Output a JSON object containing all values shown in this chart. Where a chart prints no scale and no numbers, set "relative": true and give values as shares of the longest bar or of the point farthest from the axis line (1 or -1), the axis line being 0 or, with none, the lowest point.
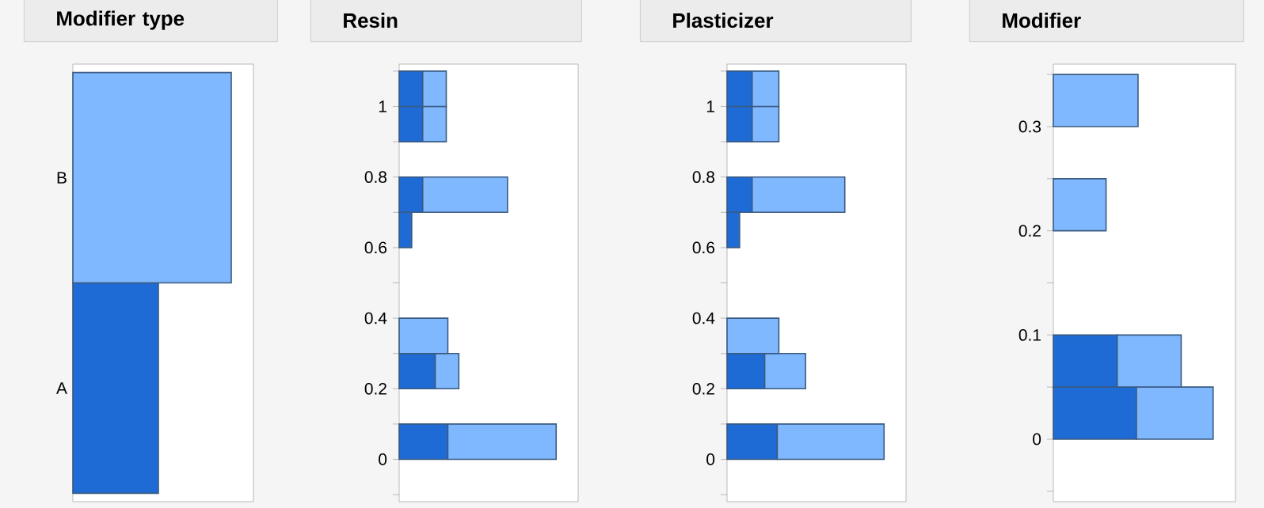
{
  "chart_data": [
    {
      "type": "bar",
      "title": "Modifier type",
      "categories": [
        "B",
        "A"
      ],
      "orientation": "horizontal",
      "relative": true,
      "series": [
        {
          "color": "#1f6bd6",
          "values": [
            null,
            0.54
          ]
        },
        {
          "color": "#80b8ff",
          "values": [
            1,
            null
          ]
        }
      ]
    },
    {
      "type": "bar",
      "title": "Resin",
      "orientation": "horizontal",
      "stacked": true,
      "relative": true,
      "x": [
        0.05,
        0.15,
        0.25,
        0.35,
        0.45,
        0.55,
        0.65,
        0.75,
        0.85,
        0.95,
        1.05
      ],
      "ylim": [
        -0.12,
        1.12
      ],
      "yticks": [
        {
          "value": -0.1,
          "label": null
        },
        0,
        {
          "value": 0.1,
          "label": null
        },
        0.2,
        {
          "value": 0.3,
          "label": null
        },
        0.4,
        {
          "value": 0.5,
          "label": null
        },
        0.6,
        {
          "value": 0.7,
          "label": null
        },
        0.8,
        {
          "value": 0.9,
          "label": null
        },
        1,
        {
          "value": 1.1,
          "label": null
        }
      ],
      "series": [
        {
          "color": "#1f6bd6",
          "values": [
            0.31,
            null,
            0.23,
            null,
            null,
            null,
            0.08,
            0.15,
            null,
            0.15,
            0.15
          ]
        },
        {
          "color": "#80b8ff",
          "values": [
            0.69,
            null,
            0.15,
            0.31,
            null,
            null,
            null,
            0.54,
            null,
            0.15,
            0.15
          ]
        }
      ]
    },
    {
      "type": "bar",
      "title": "Plasticizer",
      "orientation": "horizontal",
      "stacked": true,
      "relative": true,
      "x": [
        0.05,
        0.15,
        0.25,
        0.35,
        0.45,
        0.55,
        0.65,
        0.75,
        0.85,
        0.95,
        1.05
      ],
      "ylim": [
        -0.12,
        1.12
      ],
      "yticks": [
        {
          "value": -0.1,
          "label": null
        },
        0,
        {
          "value": 0.1,
          "label": null
        },
        0.2,
        {
          "value": 0.3,
          "label": null
        },
        0.4,
        {
          "value": 0.5,
          "label": null
        },
        0.6,
        {
          "value": 0.7,
          "label": null
        },
        0.8,
        {
          "value": 0.9,
          "label": null
        },
        1,
        {
          "value": 1.1,
          "label": null
        }
      ],
      "series": [
        {
          "color": "#1f6bd6",
          "values": [
            0.32,
            null,
            0.24,
            null,
            null,
            null,
            0.08,
            0.16,
            null,
            0.16,
            0.16
          ]
        },
        {
          "color": "#80b8ff",
          "values": [
            0.68,
            null,
            0.26,
            0.33,
            null,
            null,
            null,
            0.59,
            null,
            0.17,
            0.17
          ]
        }
      ]
    },
    {
      "type": "bar",
      "title": "Modifier",
      "orientation": "horizontal",
      "stacked": true,
      "relative": true,
      "x": [
        0.025,
        0.075,
        0.125,
        0.175,
        0.225,
        0.275,
        0.325
      ],
      "ylim": [
        -0.06,
        0.36
      ],
      "yticks": [
        {
          "value": -0.05,
          "label": null
        },
        0,
        {
          "value": 0.05,
          "label": null
        },
        0.1,
        {
          "value": 0.15,
          "label": null
        },
        0.2,
        {
          "value": 0.25,
          "label": null
        },
        0.3,
        {
          "value": 0.35,
          "label": null
        }
      ],
      "series": [
        {
          "color": "#1f6bd6",
          "values": [
            0.52,
            0.4,
            null,
            null,
            null,
            null,
            null
          ]
        },
        {
          "color": "#80b8ff",
          "values": [
            0.48,
            0.4,
            null,
            null,
            0.33,
            null,
            0.53
          ]
        }
      ]
    }
  ]
}
